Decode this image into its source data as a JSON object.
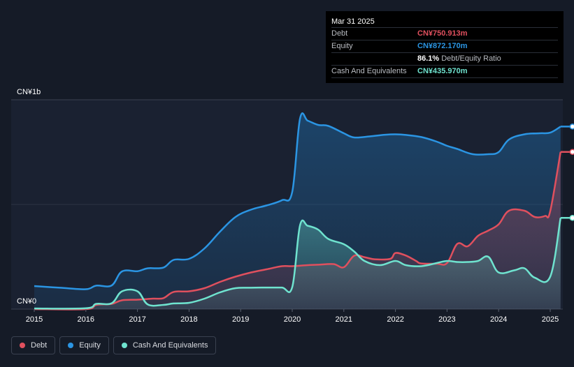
{
  "tooltip": {
    "date": "Mar 31 2025",
    "rows": [
      {
        "label": "Debt",
        "value": "CN¥750.913m"
      },
      {
        "label": "Equity",
        "value": "CN¥872.170m"
      },
      {
        "label": "",
        "value": "86.1%",
        "suffix": "Debt/Equity Ratio"
      },
      {
        "label": "Cash And Equivalents",
        "value": "CN¥435.970m"
      }
    ]
  },
  "legend": {
    "debt": "Debt",
    "equity": "Equity",
    "cash": "Cash And Equivalents"
  },
  "colors": {
    "debt": "#e0505e",
    "equity": "#2b95e3",
    "cash": "#6fe3cf",
    "background": "#151b27"
  },
  "chart_data": {
    "type": "area",
    "title": "",
    "ylabel": "",
    "xlabel": "",
    "y_axis_labels": {
      "top": "CN¥1b",
      "bottom": "CN¥0"
    },
    "ylim": [
      0,
      1000
    ],
    "xlim": [
      2015.0,
      2025.3
    ],
    "x_ticks": [
      "2015",
      "2016",
      "2017",
      "2018",
      "2019",
      "2020",
      "2021",
      "2022",
      "2023",
      "2024",
      "2025"
    ],
    "series": [
      {
        "name": "Equity",
        "points": [
          [
            2015.0,
            110
          ],
          [
            2015.5,
            102
          ],
          [
            2016.0,
            95
          ],
          [
            2016.2,
            112
          ],
          [
            2016.5,
            113
          ],
          [
            2016.7,
            180
          ],
          [
            2017.0,
            181
          ],
          [
            2017.2,
            195
          ],
          [
            2017.5,
            198
          ],
          [
            2017.7,
            235
          ],
          [
            2018.0,
            240
          ],
          [
            2018.3,
            290
          ],
          [
            2018.6,
            370
          ],
          [
            2018.9,
            440
          ],
          [
            2019.2,
            475
          ],
          [
            2019.5,
            495
          ],
          [
            2019.8,
            520
          ],
          [
            2020.0,
            560
          ],
          [
            2020.15,
            910
          ],
          [
            2020.3,
            900
          ],
          [
            2020.5,
            880
          ],
          [
            2020.7,
            875
          ],
          [
            2021.0,
            840
          ],
          [
            2021.2,
            820
          ],
          [
            2021.5,
            825
          ],
          [
            2021.8,
            833
          ],
          [
            2022.0,
            835
          ],
          [
            2022.2,
            832
          ],
          [
            2022.5,
            822
          ],
          [
            2022.8,
            800
          ],
          [
            2023.0,
            780
          ],
          [
            2023.2,
            765
          ],
          [
            2023.5,
            740
          ],
          [
            2023.8,
            740
          ],
          [
            2024.0,
            750
          ],
          [
            2024.2,
            810
          ],
          [
            2024.5,
            835
          ],
          [
            2024.8,
            840
          ],
          [
            2025.0,
            843
          ],
          [
            2025.2,
            872
          ]
        ]
      },
      {
        "name": "Debt",
        "points": [
          [
            2015.0,
            0
          ],
          [
            2016.0,
            0
          ],
          [
            2016.2,
            20
          ],
          [
            2016.5,
            25
          ],
          [
            2016.7,
            42
          ],
          [
            2017.0,
            45
          ],
          [
            2017.3,
            50
          ],
          [
            2017.5,
            52
          ],
          [
            2017.7,
            82
          ],
          [
            2018.0,
            85
          ],
          [
            2018.3,
            100
          ],
          [
            2018.6,
            130
          ],
          [
            2018.9,
            155
          ],
          [
            2019.2,
            175
          ],
          [
            2019.5,
            190
          ],
          [
            2019.8,
            205
          ],
          [
            2020.0,
            205
          ],
          [
            2020.3,
            210
          ],
          [
            2020.5,
            212
          ],
          [
            2020.8,
            215
          ],
          [
            2021.0,
            200
          ],
          [
            2021.2,
            255
          ],
          [
            2021.4,
            248
          ],
          [
            2021.6,
            238
          ],
          [
            2021.9,
            240
          ],
          [
            2022.0,
            268
          ],
          [
            2022.2,
            256
          ],
          [
            2022.4,
            230
          ],
          [
            2022.5,
            218
          ],
          [
            2022.8,
            217
          ],
          [
            2023.0,
            220
          ],
          [
            2023.2,
            312
          ],
          [
            2023.4,
            300
          ],
          [
            2023.6,
            350
          ],
          [
            2023.8,
            375
          ],
          [
            2024.0,
            405
          ],
          [
            2024.2,
            470
          ],
          [
            2024.5,
            470
          ],
          [
            2024.7,
            440
          ],
          [
            2024.9,
            445
          ],
          [
            2025.0,
            468
          ],
          [
            2025.2,
            751
          ]
        ]
      },
      {
        "name": "Cash And Equivalents",
        "points": [
          [
            2015.0,
            3
          ],
          [
            2016.0,
            4
          ],
          [
            2016.2,
            25
          ],
          [
            2016.5,
            28
          ],
          [
            2016.7,
            85
          ],
          [
            2017.0,
            85
          ],
          [
            2017.2,
            22
          ],
          [
            2017.5,
            20
          ],
          [
            2017.7,
            27
          ],
          [
            2018.0,
            30
          ],
          [
            2018.3,
            50
          ],
          [
            2018.6,
            80
          ],
          [
            2018.9,
            100
          ],
          [
            2019.2,
            102
          ],
          [
            2019.5,
            103
          ],
          [
            2019.8,
            103
          ],
          [
            2020.0,
            105
          ],
          [
            2020.15,
            400
          ],
          [
            2020.3,
            398
          ],
          [
            2020.5,
            380
          ],
          [
            2020.7,
            335
          ],
          [
            2021.0,
            310
          ],
          [
            2021.2,
            275
          ],
          [
            2021.4,
            230
          ],
          [
            2021.7,
            210
          ],
          [
            2022.0,
            230
          ],
          [
            2022.2,
            210
          ],
          [
            2022.5,
            205
          ],
          [
            2022.8,
            220
          ],
          [
            2023.0,
            230
          ],
          [
            2023.2,
            225
          ],
          [
            2023.4,
            225
          ],
          [
            2023.6,
            230
          ],
          [
            2023.8,
            250
          ],
          [
            2024.0,
            175
          ],
          [
            2024.3,
            185
          ],
          [
            2024.5,
            195
          ],
          [
            2024.7,
            150
          ],
          [
            2025.0,
            155
          ],
          [
            2025.2,
            436
          ]
        ]
      }
    ]
  }
}
